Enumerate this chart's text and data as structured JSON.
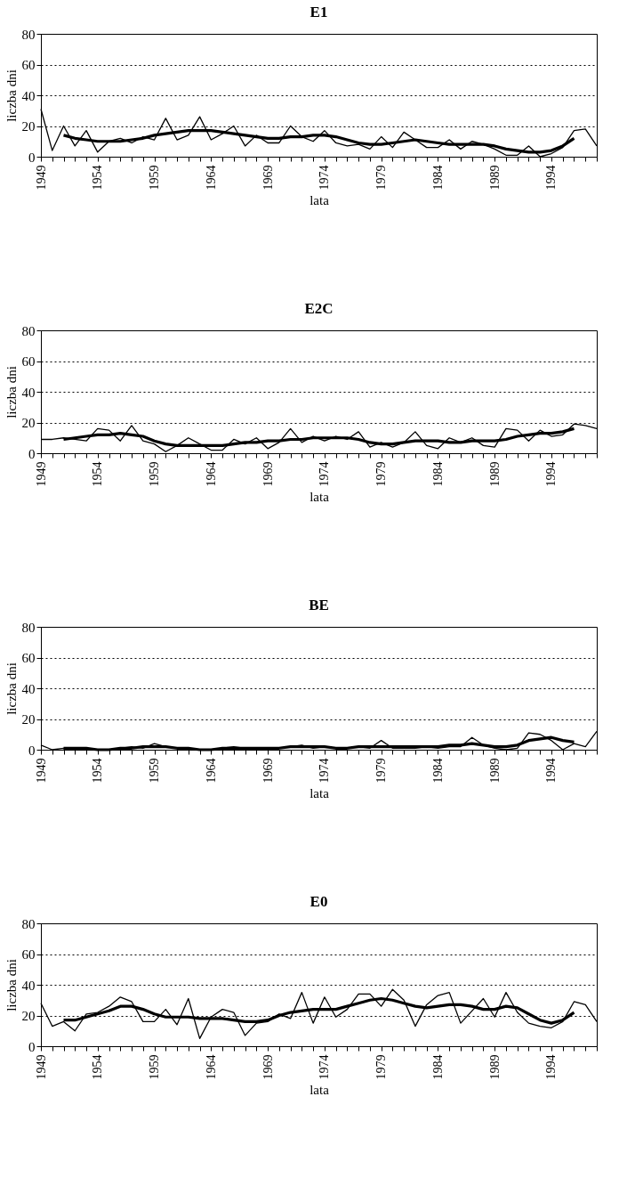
{
  "chart_data": [
    {
      "type": "line",
      "title": "E1",
      "xlabel": "lata",
      "ylabel": "liczba dni",
      "xlim": [
        1949,
        1998
      ],
      "ylim": [
        0,
        80
      ],
      "yticks": [
        0,
        20,
        40,
        60,
        80
      ],
      "grid": "y",
      "xticks": [
        1949,
        {
          "value": 1950,
          "label": null
        },
        {
          "value": 1951,
          "label": null
        },
        {
          "value": 1952,
          "label": null
        },
        {
          "value": 1953,
          "label": null
        },
        1954,
        {
          "value": 1955,
          "label": null
        },
        {
          "value": 1956,
          "label": null
        },
        {
          "value": 1957,
          "label": null
        },
        {
          "value": 1958,
          "label": null
        },
        1959,
        {
          "value": 1960,
          "label": null
        },
        {
          "value": 1961,
          "label": null
        },
        {
          "value": 1962,
          "label": null
        },
        {
          "value": 1963,
          "label": null
        },
        1964,
        {
          "value": 1965,
          "label": null
        },
        {
          "value": 1966,
          "label": null
        },
        {
          "value": 1967,
          "label": null
        },
        {
          "value": 1968,
          "label": null
        },
        1969,
        {
          "value": 1970,
          "label": null
        },
        {
          "value": 1971,
          "label": null
        },
        {
          "value": 1972,
          "label": null
        },
        {
          "value": 1973,
          "label": null
        },
        1974,
        {
          "value": 1975,
          "label": null
        },
        {
          "value": 1976,
          "label": null
        },
        {
          "value": 1977,
          "label": null
        },
        {
          "value": 1978,
          "label": null
        },
        1979,
        {
          "value": 1980,
          "label": null
        },
        {
          "value": 1981,
          "label": null
        },
        {
          "value": 1982,
          "label": null
        },
        {
          "value": 1983,
          "label": null
        },
        1984,
        {
          "value": 1985,
          "label": null
        },
        {
          "value": 1986,
          "label": null
        },
        {
          "value": 1987,
          "label": null
        },
        {
          "value": 1988,
          "label": null
        },
        1989,
        {
          "value": 1990,
          "label": null
        },
        {
          "value": 1991,
          "label": null
        },
        {
          "value": 1992,
          "label": null
        },
        {
          "value": 1993,
          "label": null
        },
        1994,
        {
          "value": 1995,
          "label": null
        },
        {
          "value": 1996,
          "label": null
        },
        {
          "value": 1997,
          "label": null
        },
        {
          "value": 1998,
          "label": null
        }
      ],
      "series": [
        {
          "color": "#000000",
          "x": [
            1949,
            1950,
            1951,
            1952,
            1953,
            1954,
            1955,
            1956,
            1957,
            1958,
            1959,
            1960,
            1961,
            1962,
            1963,
            1964,
            1965,
            1966,
            1967,
            1968,
            1969,
            1970,
            1971,
            1972,
            1973,
            1974,
            1975,
            1976,
            1977,
            1978,
            1979,
            1980,
            1981,
            1982,
            1983,
            1984,
            1985,
            1986,
            1987,
            1988,
            1989,
            1990,
            1991,
            1992,
            1993,
            1994,
            1995,
            1996,
            1997,
            1998
          ],
          "values": [
            31,
            4,
            20,
            7,
            17,
            3,
            10,
            12,
            9,
            13,
            11,
            25,
            11,
            14,
            26,
            11,
            15,
            20,
            7,
            14,
            9,
            9,
            20,
            13,
            10,
            17,
            9,
            7,
            8,
            5,
            13,
            6,
            16,
            11,
            6,
            6,
            11,
            5,
            10,
            8,
            5,
            1,
            1,
            7,
            0,
            2,
            6,
            17,
            18,
            7
          ]
        },
        {
          "color": "#000000",
          "x": [
            1951,
            1952,
            1953,
            1954,
            1955,
            1956,
            1957,
            1958,
            1959,
            1960,
            1961,
            1962,
            1963,
            1964,
            1965,
            1966,
            1967,
            1968,
            1969,
            1970,
            1971,
            1972,
            1973,
            1974,
            1975,
            1976,
            1977,
            1978,
            1979,
            1980,
            1981,
            1982,
            1983,
            1984,
            1985,
            1986,
            1987,
            1988,
            1989,
            1990,
            1991,
            1992,
            1993,
            1994,
            1995,
            1996
          ],
          "values": [
            14,
            12,
            11,
            10,
            10,
            10,
            11,
            12,
            14,
            15,
            16,
            17,
            17,
            17,
            16,
            15,
            14,
            13,
            12,
            12,
            13,
            13,
            14,
            14,
            13,
            11,
            9,
            8,
            8,
            9,
            10,
            11,
            10,
            9,
            8,
            8,
            8,
            8,
            7,
            5,
            4,
            3,
            3,
            4,
            7,
            12
          ]
        }
      ]
    },
    {
      "type": "line",
      "title": "E2C",
      "xlabel": "lata",
      "ylabel": "liczba dni",
      "xlim": [
        1949,
        1998
      ],
      "ylim": [
        0,
        80
      ],
      "yticks": [
        0,
        20,
        40,
        60,
        80
      ],
      "grid": "y",
      "xticks": [
        1949,
        {
          "value": 1950,
          "label": null
        },
        {
          "value": 1951,
          "label": null
        },
        {
          "value": 1952,
          "label": null
        },
        {
          "value": 1953,
          "label": null
        },
        1954,
        {
          "value": 1955,
          "label": null
        },
        {
          "value": 1956,
          "label": null
        },
        {
          "value": 1957,
          "label": null
        },
        {
          "value": 1958,
          "label": null
        },
        1959,
        {
          "value": 1960,
          "label": null
        },
        {
          "value": 1961,
          "label": null
        },
        {
          "value": 1962,
          "label": null
        },
        {
          "value": 1963,
          "label": null
        },
        1964,
        {
          "value": 1965,
          "label": null
        },
        {
          "value": 1966,
          "label": null
        },
        {
          "value": 1967,
          "label": null
        },
        {
          "value": 1968,
          "label": null
        },
        1969,
        {
          "value": 1970,
          "label": null
        },
        {
          "value": 1971,
          "label": null
        },
        {
          "value": 1972,
          "label": null
        },
        {
          "value": 1973,
          "label": null
        },
        1974,
        {
          "value": 1975,
          "label": null
        },
        {
          "value": 1976,
          "label": null
        },
        {
          "value": 1977,
          "label": null
        },
        {
          "value": 1978,
          "label": null
        },
        1979,
        {
          "value": 1980,
          "label": null
        },
        {
          "value": 1981,
          "label": null
        },
        {
          "value": 1982,
          "label": null
        },
        {
          "value": 1983,
          "label": null
        },
        1984,
        {
          "value": 1985,
          "label": null
        },
        {
          "value": 1986,
          "label": null
        },
        {
          "value": 1987,
          "label": null
        },
        {
          "value": 1988,
          "label": null
        },
        1989,
        {
          "value": 1990,
          "label": null
        },
        {
          "value": 1991,
          "label": null
        },
        {
          "value": 1992,
          "label": null
        },
        {
          "value": 1993,
          "label": null
        },
        1994,
        {
          "value": 1995,
          "label": null
        },
        {
          "value": 1996,
          "label": null
        },
        {
          "value": 1997,
          "label": null
        },
        {
          "value": 1998,
          "label": null
        }
      ],
      "series": [
        {
          "color": "#000000",
          "x": [
            1949,
            1950,
            1951,
            1952,
            1953,
            1954,
            1955,
            1956,
            1957,
            1958,
            1959,
            1960,
            1961,
            1962,
            1963,
            1964,
            1965,
            1966,
            1967,
            1968,
            1969,
            1970,
            1971,
            1972,
            1973,
            1974,
            1975,
            1976,
            1977,
            1978,
            1979,
            1980,
            1981,
            1982,
            1983,
            1984,
            1985,
            1986,
            1987,
            1988,
            1989,
            1990,
            1991,
            1992,
            1993,
            1994,
            1995,
            1996,
            1997,
            1998
          ],
          "values": [
            9,
            9,
            10,
            9,
            8,
            16,
            15,
            8,
            18,
            8,
            6,
            1,
            5,
            10,
            6,
            2,
            2,
            9,
            6,
            10,
            3,
            7,
            16,
            7,
            11,
            8,
            11,
            9,
            14,
            4,
            7,
            4,
            7,
            14,
            5,
            3,
            10,
            7,
            10,
            5,
            4,
            16,
            15,
            8,
            15,
            11,
            12,
            19,
            18,
            16
          ]
        },
        {
          "color": "#000000",
          "x": [
            1951,
            1952,
            1953,
            1954,
            1955,
            1956,
            1957,
            1958,
            1959,
            1960,
            1961,
            1962,
            1963,
            1964,
            1965,
            1966,
            1967,
            1968,
            1969,
            1970,
            1971,
            1972,
            1973,
            1974,
            1975,
            1976,
            1977,
            1978,
            1979,
            1980,
            1981,
            1982,
            1983,
            1984,
            1985,
            1986,
            1987,
            1988,
            1989,
            1990,
            1991,
            1992,
            1993,
            1994,
            1995,
            1996
          ],
          "values": [
            9,
            10,
            11,
            12,
            12,
            13,
            12,
            11,
            8,
            6,
            5,
            5,
            5,
            5,
            5,
            6,
            7,
            7,
            8,
            8,
            9,
            9,
            10,
            10,
            10,
            10,
            9,
            7,
            6,
            6,
            7,
            8,
            8,
            8,
            7,
            7,
            8,
            8,
            8,
            9,
            11,
            12,
            13,
            13,
            14,
            16
          ]
        }
      ]
    },
    {
      "type": "line",
      "title": "BE",
      "xlabel": "lata",
      "ylabel": "liczba dni",
      "xlim": [
        1949,
        1998
      ],
      "ylim": [
        0,
        80
      ],
      "yticks": [
        0,
        20,
        40,
        60,
        80
      ],
      "grid": "y",
      "xticks": [
        1949,
        {
          "value": 1950,
          "label": null
        },
        {
          "value": 1951,
          "label": null
        },
        {
          "value": 1952,
          "label": null
        },
        {
          "value": 1953,
          "label": null
        },
        1954,
        {
          "value": 1955,
          "label": null
        },
        {
          "value": 1956,
          "label": null
        },
        {
          "value": 1957,
          "label": null
        },
        {
          "value": 1958,
          "label": null
        },
        1959,
        {
          "value": 1960,
          "label": null
        },
        {
          "value": 1961,
          "label": null
        },
        {
          "value": 1962,
          "label": null
        },
        {
          "value": 1963,
          "label": null
        },
        1964,
        {
          "value": 1965,
          "label": null
        },
        {
          "value": 1966,
          "label": null
        },
        {
          "value": 1967,
          "label": null
        },
        {
          "value": 1968,
          "label": null
        },
        1969,
        {
          "value": 1970,
          "label": null
        },
        {
          "value": 1971,
          "label": null
        },
        {
          "value": 1972,
          "label": null
        },
        {
          "value": 1973,
          "label": null
        },
        1974,
        {
          "value": 1975,
          "label": null
        },
        {
          "value": 1976,
          "label": null
        },
        {
          "value": 1977,
          "label": null
        },
        {
          "value": 1978,
          "label": null
        },
        1979,
        {
          "value": 1980,
          "label": null
        },
        {
          "value": 1981,
          "label": null
        },
        {
          "value": 1982,
          "label": null
        },
        {
          "value": 1983,
          "label": null
        },
        1984,
        {
          "value": 1985,
          "label": null
        },
        {
          "value": 1986,
          "label": null
        },
        {
          "value": 1987,
          "label": null
        },
        {
          "value": 1988,
          "label": null
        },
        1989,
        {
          "value": 1990,
          "label": null
        },
        {
          "value": 1991,
          "label": null
        },
        {
          "value": 1992,
          "label": null
        },
        {
          "value": 1993,
          "label": null
        },
        1994,
        {
          "value": 1995,
          "label": null
        },
        {
          "value": 1996,
          "label": null
        },
        {
          "value": 1997,
          "label": null
        },
        {
          "value": 1998,
          "label": null
        }
      ],
      "series": [
        {
          "color": "#000000",
          "x": [
            1949,
            1950,
            1951,
            1952,
            1953,
            1954,
            1955,
            1956,
            1957,
            1958,
            1959,
            1960,
            1961,
            1962,
            1963,
            1964,
            1965,
            1966,
            1967,
            1968,
            1969,
            1970,
            1971,
            1972,
            1973,
            1974,
            1975,
            1976,
            1977,
            1978,
            1979,
            1980,
            1981,
            1982,
            1983,
            1984,
            1985,
            1986,
            1987,
            1988,
            1989,
            1990,
            1991,
            1992,
            1993,
            1994,
            1995,
            1996,
            1997,
            1998
          ],
          "values": [
            3,
            0,
            1,
            0,
            1,
            0,
            0,
            1,
            2,
            1,
            4,
            2,
            1,
            0,
            0,
            0,
            1,
            2,
            1,
            1,
            0,
            1,
            2,
            3,
            1,
            2,
            1,
            1,
            2,
            1,
            6,
            1,
            1,
            1,
            2,
            1,
            2,
            2,
            8,
            3,
            1,
            0,
            1,
            11,
            10,
            6,
            0,
            4,
            2,
            12
          ]
        },
        {
          "color": "#000000",
          "x": [
            1951,
            1952,
            1953,
            1954,
            1955,
            1956,
            1957,
            1958,
            1959,
            1960,
            1961,
            1962,
            1963,
            1964,
            1965,
            1966,
            1967,
            1968,
            1969,
            1970,
            1971,
            1972,
            1973,
            1974,
            1975,
            1976,
            1977,
            1978,
            1979,
            1980,
            1981,
            1982,
            1983,
            1984,
            1985,
            1986,
            1987,
            1988,
            1989,
            1990,
            1991,
            1992,
            1993,
            1994,
            1995,
            1996
          ],
          "values": [
            1,
            1,
            1,
            0,
            0,
            1,
            1,
            2,
            2,
            2,
            1,
            1,
            0,
            0,
            1,
            1,
            1,
            1,
            1,
            1,
            2,
            2,
            2,
            2,
            1,
            1,
            2,
            2,
            2,
            2,
            2,
            2,
            2,
            2,
            3,
            3,
            4,
            3,
            2,
            2,
            3,
            6,
            7,
            8,
            6,
            5
          ]
        }
      ]
    },
    {
      "type": "line",
      "title": "E0",
      "xlabel": "lata",
      "ylabel": "liczba dni",
      "xlim": [
        1949,
        1998
      ],
      "ylim": [
        0,
        80
      ],
      "yticks": [
        0,
        20,
        40,
        60,
        80
      ],
      "grid": "y",
      "xticks": [
        1949,
        {
          "value": 1950,
          "label": null
        },
        {
          "value": 1951,
          "label": null
        },
        {
          "value": 1952,
          "label": null
        },
        {
          "value": 1953,
          "label": null
        },
        1954,
        {
          "value": 1955,
          "label": null
        },
        {
          "value": 1956,
          "label": null
        },
        {
          "value": 1957,
          "label": null
        },
        {
          "value": 1958,
          "label": null
        },
        1959,
        {
          "value": 1960,
          "label": null
        },
        {
          "value": 1961,
          "label": null
        },
        {
          "value": 1962,
          "label": null
        },
        {
          "value": 1963,
          "label": null
        },
        1964,
        {
          "value": 1965,
          "label": null
        },
        {
          "value": 1966,
          "label": null
        },
        {
          "value": 1967,
          "label": null
        },
        {
          "value": 1968,
          "label": null
        },
        1969,
        {
          "value": 1970,
          "label": null
        },
        {
          "value": 1971,
          "label": null
        },
        {
          "value": 1972,
          "label": null
        },
        {
          "value": 1973,
          "label": null
        },
        1974,
        {
          "value": 1975,
          "label": null
        },
        {
          "value": 1976,
          "label": null
        },
        {
          "value": 1977,
          "label": null
        },
        {
          "value": 1978,
          "label": null
        },
        1979,
        {
          "value": 1980,
          "label": null
        },
        {
          "value": 1981,
          "label": null
        },
        {
          "value": 1982,
          "label": null
        },
        {
          "value": 1983,
          "label": null
        },
        1984,
        {
          "value": 1985,
          "label": null
        },
        {
          "value": 1986,
          "label": null
        },
        {
          "value": 1987,
          "label": null
        },
        {
          "value": 1988,
          "label": null
        },
        1989,
        {
          "value": 1990,
          "label": null
        },
        {
          "value": 1991,
          "label": null
        },
        {
          "value": 1992,
          "label": null
        },
        {
          "value": 1993,
          "label": null
        },
        1994,
        {
          "value": 1995,
          "label": null
        },
        {
          "value": 1996,
          "label": null
        },
        {
          "value": 1997,
          "label": null
        },
        {
          "value": 1998,
          "label": null
        }
      ],
      "series": [
        {
          "color": "#000000",
          "x": [
            1949,
            1950,
            1951,
            1952,
            1953,
            1954,
            1955,
            1956,
            1957,
            1958,
            1959,
            1960,
            1961,
            1962,
            1963,
            1964,
            1965,
            1966,
            1967,
            1968,
            1969,
            1970,
            1971,
            1972,
            1973,
            1974,
            1975,
            1976,
            1977,
            1978,
            1979,
            1980,
            1981,
            1982,
            1983,
            1984,
            1985,
            1986,
            1987,
            1988,
            1989,
            1990,
            1991,
            1992,
            1993,
            1994,
            1995,
            1996,
            1997,
            1998
          ],
          "values": [
            28,
            13,
            16,
            10,
            21,
            22,
            26,
            32,
            29,
            16,
            16,
            24,
            14,
            31,
            5,
            19,
            24,
            22,
            7,
            15,
            16,
            21,
            18,
            35,
            15,
            32,
            19,
            24,
            34,
            34,
            26,
            37,
            30,
            13,
            27,
            33,
            35,
            15,
            23,
            31,
            19,
            35,
            22,
            15,
            13,
            12,
            16,
            29,
            27,
            16
          ]
        },
        {
          "color": "#000000",
          "x": [
            1951,
            1952,
            1953,
            1954,
            1955,
            1956,
            1957,
            1958,
            1959,
            1960,
            1961,
            1962,
            1963,
            1964,
            1965,
            1966,
            1967,
            1968,
            1969,
            1970,
            1971,
            1972,
            1973,
            1974,
            1975,
            1976,
            1977,
            1978,
            1979,
            1980,
            1981,
            1982,
            1983,
            1984,
            1985,
            1986,
            1987,
            1988,
            1989,
            1990,
            1991,
            1992,
            1993,
            1994,
            1995,
            1996
          ],
          "values": [
            17,
            17,
            19,
            21,
            23,
            26,
            26,
            24,
            21,
            19,
            19,
            19,
            18,
            18,
            18,
            17,
            16,
            16,
            17,
            20,
            22,
            23,
            24,
            24,
            24,
            26,
            28,
            30,
            31,
            30,
            28,
            26,
            25,
            26,
            27,
            27,
            26,
            24,
            24,
            26,
            25,
            21,
            17,
            15,
            17,
            22
          ]
        }
      ]
    }
  ]
}
